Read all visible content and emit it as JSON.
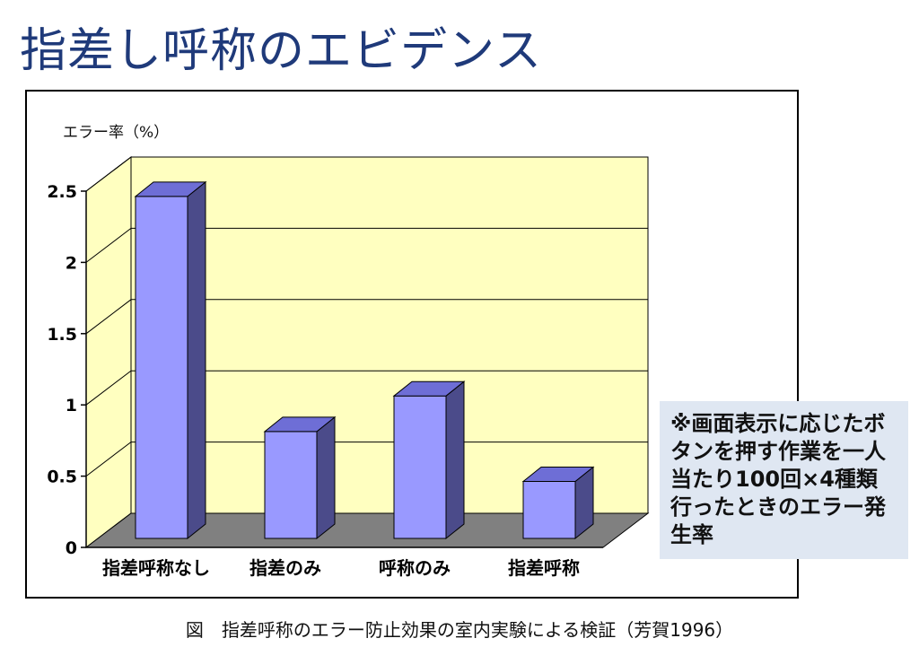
{
  "page": {
    "title": "指差し呼称のエビデンス"
  },
  "chart_data": {
    "type": "bar",
    "ylabel": "エラー率（%）",
    "xlabel": "",
    "categories": [
      "指差呼称なし",
      "指差のみ",
      "呼称のみ",
      "指差呼称"
    ],
    "values": [
      2.4,
      0.75,
      1.0,
      0.4
    ],
    "ylim": [
      0,
      2.5
    ],
    "yticks": [
      "0",
      "0.5",
      "1",
      "1.5",
      "2",
      "2.5"
    ],
    "ytick_values": [
      0,
      0.5,
      1,
      1.5,
      2,
      2.5
    ],
    "grid": true,
    "three_d": true,
    "colors": {
      "bar_front": "#9999ff",
      "bar_top": "#6e6ed6",
      "bar_side": "#4b4b8a",
      "wall": "#ffffc0",
      "floor": "#808080",
      "grid": "#000000"
    }
  },
  "note": {
    "text": "※画面表示に応じたボタンを押す作業を一人当たり100回×4種類行ったときのエラー発生率"
  },
  "caption": {
    "text": "図　指差呼称のエラー防止効果の室内実験による検証（芳賀1996）"
  }
}
